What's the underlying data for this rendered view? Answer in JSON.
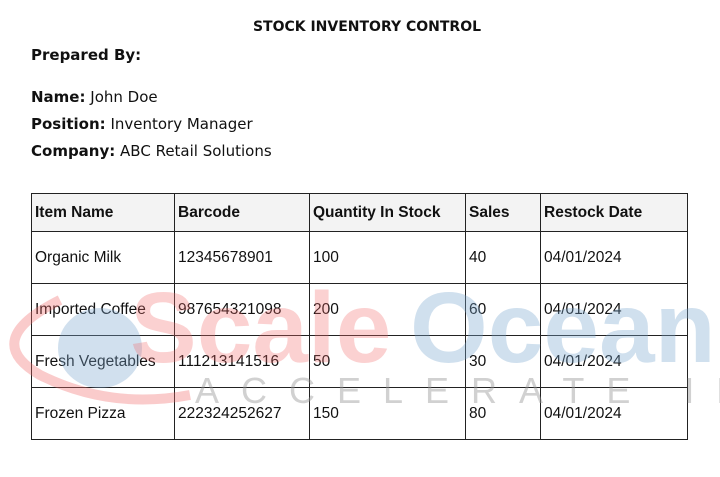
{
  "document": {
    "title": "STOCK INVENTORY CONTROL",
    "prepared_by_label": "Prepared By:",
    "name_label": "Name:",
    "name": "John Doe",
    "position_label": "Position:",
    "position": "Inventory Manager",
    "company_label": "Company:",
    "company": "ABC Retail Solutions"
  },
  "table": {
    "headers": [
      "Item Name",
      "Barcode",
      "Quantity In Stock",
      "Sales",
      "Restock Date"
    ],
    "rows": [
      [
        "Organic Milk",
        "12345678901",
        "100",
        "40",
        "04/01/2024"
      ],
      [
        "Imported Coffee",
        "987654321098",
        "200",
        "60",
        "04/01/2024"
      ],
      [
        "Fresh Vegetables",
        "111213141516",
        "50",
        "30",
        "04/01/2024"
      ],
      [
        "Frozen Pizza",
        "222324252627",
        "150",
        "80",
        "04/01/2024"
      ]
    ]
  },
  "watermark": {
    "brand_a": "Scale",
    "brand_b": "Ocean",
    "tagline": "ACCELERATE IMPACT",
    "color_a": "#f26b6b",
    "color_b": "#7aa7cf",
    "color_tag": "#9a9a9a"
  }
}
